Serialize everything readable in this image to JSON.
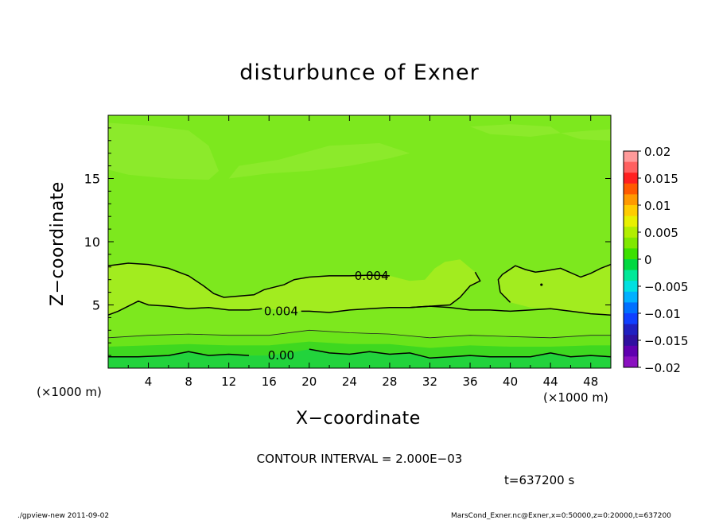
{
  "title": "disturbunce of Exner",
  "xlabel": "X−coordinate",
  "ylabel": "Z−coordinate",
  "x_unit_left": "(×1000 m)",
  "x_unit_right": "(×1000 m)",
  "contour_interval": "CONTOUR INTERVAL = 2.000E−03",
  "time_label": "t=637200 s",
  "footer_left": "./gpview-new  2011-09-02",
  "footer_right": "MarsCond_Exner.nc@Exner,x=0:50000,z=0:20000,t=637200",
  "chart_data": {
    "type": "heatmap",
    "title": "disturbunce of Exner",
    "xlabel": "X−coordinate",
    "ylabel": "Z−coordinate",
    "xlim": [
      0,
      50
    ],
    "ylim": [
      0,
      20
    ],
    "x_ticks": [
      4,
      8,
      12,
      16,
      20,
      24,
      28,
      32,
      36,
      40,
      44,
      48
    ],
    "x_tick_labels": [
      "4",
      "8",
      "12",
      "16",
      "20",
      "24",
      "28",
      "32",
      "36",
      "40",
      "44",
      "48"
    ],
    "y_ticks": [
      5,
      10,
      15
    ],
    "y_tick_labels": [
      "5",
      "10",
      "15"
    ],
    "contour_interval": 0.002,
    "contour_line_labels": [
      {
        "text": "0.004",
        "x": 26.2,
        "z": 7.3
      },
      {
        "text": "0.004",
        "x": 17.2,
        "z": 4.5
      },
      {
        "text": "0.00",
        "x": 17.2,
        "z": 1.0
      }
    ],
    "colorbar": {
      "ticks": [
        0.02,
        0.015,
        0.01,
        0.005,
        0,
        -0.005,
        -0.01,
        -0.015,
        -0.02
      ],
      "tick_labels": [
        "0.02",
        "0.015",
        "0.01",
        "0.005",
        "0",
        "−0.005",
        "−0.01",
        "−0.015",
        "−0.02"
      ],
      "colors_top_to_bottom": [
        "#ff9a9a",
        "#ff6060",
        "#ff2020",
        "#ff5a00",
        "#ff9900",
        "#ffcc00",
        "#e8f000",
        "#b2ee00",
        "#80e800",
        "#3ce000",
        "#00d840",
        "#00e898",
        "#00e0e0",
        "#00b0ff",
        "#0070ff",
        "#1040ff",
        "#2020c0",
        "#3010a0",
        "#6000b0",
        "#8a10c0"
      ]
    },
    "regions": [
      {
        "name": "upper",
        "approx_value": 0.003,
        "color": "#7de81e"
      },
      {
        "name": "upper-pale-patches",
        "approx_value": 0.0035,
        "color": "#8cea2b"
      },
      {
        "name": "mid-band",
        "approx_value": 0.005,
        "color": "#a2ec1f"
      },
      {
        "name": "lower-band",
        "approx_value": 0.002,
        "color": "#6ae41a"
      },
      {
        "name": "near-surface",
        "approx_value": 0.0005,
        "color": "#3ed820"
      },
      {
        "name": "surface",
        "approx_value": -0.001,
        "color": "#22d33c"
      }
    ]
  }
}
